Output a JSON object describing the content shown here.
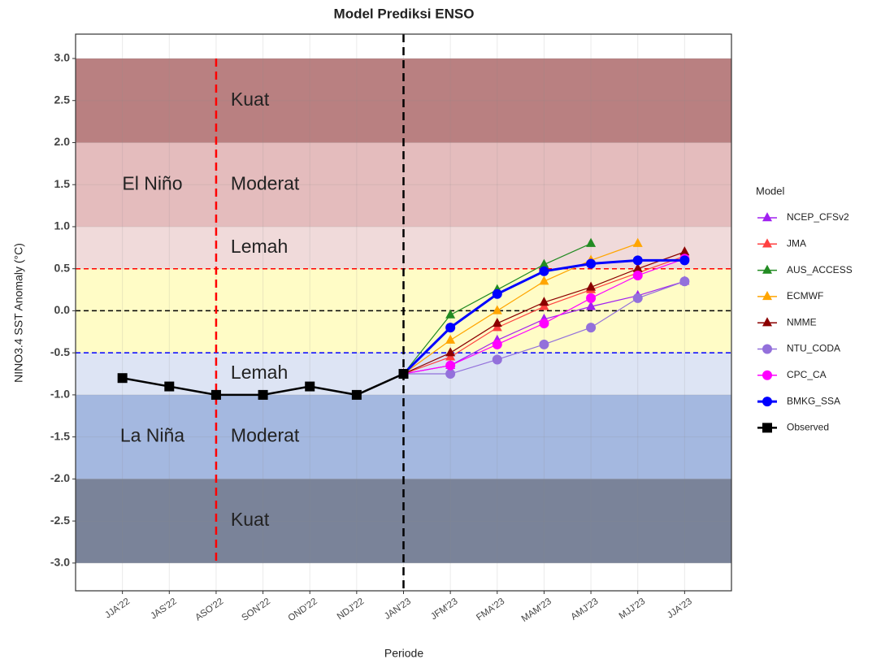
{
  "chart_data": {
    "type": "line",
    "title": "Model Prediksi ENSO",
    "x_label": "Periode",
    "y_label": "NINO3.4 SST Anomaly (°C)",
    "legend_title": "Model",
    "legend_position": "right",
    "grid": true,
    "categories": [
      "JJA'22",
      "JAS'22",
      "ASO'22",
      "SON'22",
      "OND'22",
      "NDJ'22",
      "JAN'23",
      "JFM'23",
      "FMA'23",
      "MAM'23",
      "AMJ'23",
      "MJJ'23",
      "JJA'23"
    ],
    "ylim": [
      -3.33,
      3.29
    ],
    "yticks": [
      {
        "value": 3,
        "label": "3.0"
      },
      2.5,
      {
        "value": 2,
        "label": "2.0"
      },
      1.5,
      {
        "value": 1,
        "label": "1.0"
      },
      0.5,
      {
        "value": 0,
        "label": "0.0"
      },
      -0.5,
      {
        "value": -1,
        "label": "-1.0"
      },
      -1.5,
      {
        "value": -2,
        "label": "-2.0"
      },
      -2.5,
      {
        "value": -3,
        "label": "-3.0"
      }
    ],
    "bands": [
      {
        "from": 2,
        "to": 3,
        "color": "#b98081",
        "label": "Kuat"
      },
      {
        "from": 1,
        "to": 2,
        "color": "#e4bcbd",
        "label": "Moderat",
        "group": "El Niño"
      },
      {
        "from": 0.5,
        "to": 1,
        "color": "#f0dada",
        "label": "Lemah"
      },
      {
        "from": -0.5,
        "to": 0.5,
        "color": "#fffcc6"
      },
      {
        "from": -1,
        "to": -0.5,
        "color": "#dde4f4",
        "label": "Lemah"
      },
      {
        "from": -2,
        "to": -1,
        "color": "#a4b8e0",
        "label": "Moderat",
        "group": "La Niña"
      },
      {
        "from": -3,
        "to": -2,
        "color": "#7a8399",
        "label": "Kuat"
      }
    ],
    "hlines": [
      {
        "y": 0.5,
        "color": "#ff0000"
      },
      {
        "y": 0,
        "color": "#000000"
      },
      {
        "y": -0.5,
        "color": "#0000ff"
      }
    ],
    "vlines": [
      {
        "x": "ASO'22",
        "color": "#ff0000",
        "from": -3,
        "to": 3
      },
      {
        "x": "JAN'23",
        "color": "#000000"
      }
    ],
    "series": [
      {
        "name": "NCEP_CFSv2",
        "color": "#a020f0",
        "marker": "triangle",
        "values": [
          null,
          null,
          null,
          null,
          null,
          null,
          -0.75,
          -0.65,
          -0.35,
          -0.1,
          0.05,
          0.18,
          0.35
        ]
      },
      {
        "name": "JMA",
        "color": "#ff4040",
        "marker": "triangle",
        "values": [
          null,
          null,
          null,
          null,
          null,
          null,
          -0.75,
          -0.55,
          -0.2,
          0.05,
          0.25,
          0.45,
          0.65
        ]
      },
      {
        "name": "AUS_ACCESS",
        "color": "#228b22",
        "marker": "triangle",
        "values": [
          null,
          null,
          null,
          null,
          null,
          null,
          -0.75,
          -0.05,
          0.25,
          0.55,
          0.8,
          null,
          null
        ]
      },
      {
        "name": "ECMWF",
        "color": "#ffa500",
        "marker": "triangle",
        "values": [
          null,
          null,
          null,
          null,
          null,
          null,
          -0.75,
          -0.35,
          0.0,
          0.35,
          0.6,
          0.8,
          null
        ]
      },
      {
        "name": "NMME",
        "color": "#8b0000",
        "marker": "triangle",
        "values": [
          null,
          null,
          null,
          null,
          null,
          null,
          -0.75,
          -0.5,
          -0.15,
          0.1,
          0.28,
          0.5,
          0.7
        ]
      },
      {
        "name": "NTU_CODA",
        "color": "#9370db",
        "marker": "circle",
        "values": [
          null,
          null,
          null,
          null,
          null,
          null,
          -0.75,
          -0.75,
          -0.58,
          -0.4,
          -0.2,
          0.15,
          0.35
        ]
      },
      {
        "name": "CPC_CA",
        "color": "#ff00ff",
        "marker": "circle",
        "values": [
          null,
          null,
          null,
          null,
          null,
          null,
          -0.75,
          -0.65,
          -0.4,
          -0.15,
          0.15,
          0.42,
          0.62
        ]
      },
      {
        "name": "BMKG_SSA",
        "color": "#0000ff",
        "marker": "circle",
        "width": 3,
        "values": [
          null,
          null,
          null,
          null,
          null,
          null,
          -0.75,
          -0.2,
          0.2,
          0.47,
          0.56,
          0.6,
          0.6
        ]
      },
      {
        "name": "Observed",
        "color": "#000000",
        "marker": "square",
        "width": 2.5,
        "values": [
          -0.8,
          -0.9,
          -1.0,
          -1.0,
          -0.9,
          -1.0,
          -0.75,
          null,
          null,
          null,
          null,
          null,
          null
        ]
      }
    ]
  }
}
